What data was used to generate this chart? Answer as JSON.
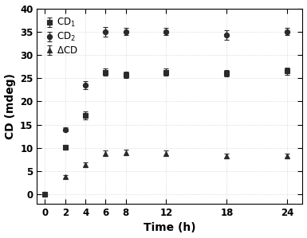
{
  "time": [
    0,
    2,
    4,
    6,
    8,
    12,
    18,
    24
  ],
  "CD1_values": [
    0,
    10.2,
    17.0,
    26.3,
    25.7,
    26.3,
    26.0,
    26.5
  ],
  "CD1_errors": [
    0.3,
    0.5,
    0.8,
    0.8,
    0.7,
    0.8,
    0.7,
    0.8
  ],
  "CD2_values": [
    0,
    14.0,
    23.5,
    35.0,
    35.0,
    35.0,
    34.3,
    35.0
  ],
  "CD2_errors": [
    0.3,
    0.5,
    0.8,
    1.0,
    0.8,
    0.8,
    1.0,
    0.8
  ],
  "DeltaCD_values": [
    0,
    3.8,
    6.4,
    8.8,
    9.0,
    8.8,
    8.3,
    8.2
  ],
  "DeltaCD_errors": [
    0.3,
    0.4,
    0.5,
    0.6,
    0.6,
    0.6,
    0.5,
    0.5
  ],
  "xlabel": "Time (h)",
  "ylabel": "CD (mdeg)",
  "ylim": [
    -2,
    40
  ],
  "xlim": [
    -0.8,
    25.5
  ],
  "yticks": [
    0,
    5,
    10,
    15,
    20,
    25,
    30,
    35,
    40
  ],
  "xticks": [
    0,
    2,
    4,
    6,
    8,
    12,
    18,
    24
  ],
  "legend_labels": [
    "CD$_1$",
    "CD$_2$",
    "$\\Delta$CD"
  ],
  "marker_CD1": "s",
  "marker_CD2": "o",
  "marker_DCD": "^",
  "color": "#2a2a2a",
  "background_color": "#ffffff",
  "grid_color": "#d0d0d0"
}
